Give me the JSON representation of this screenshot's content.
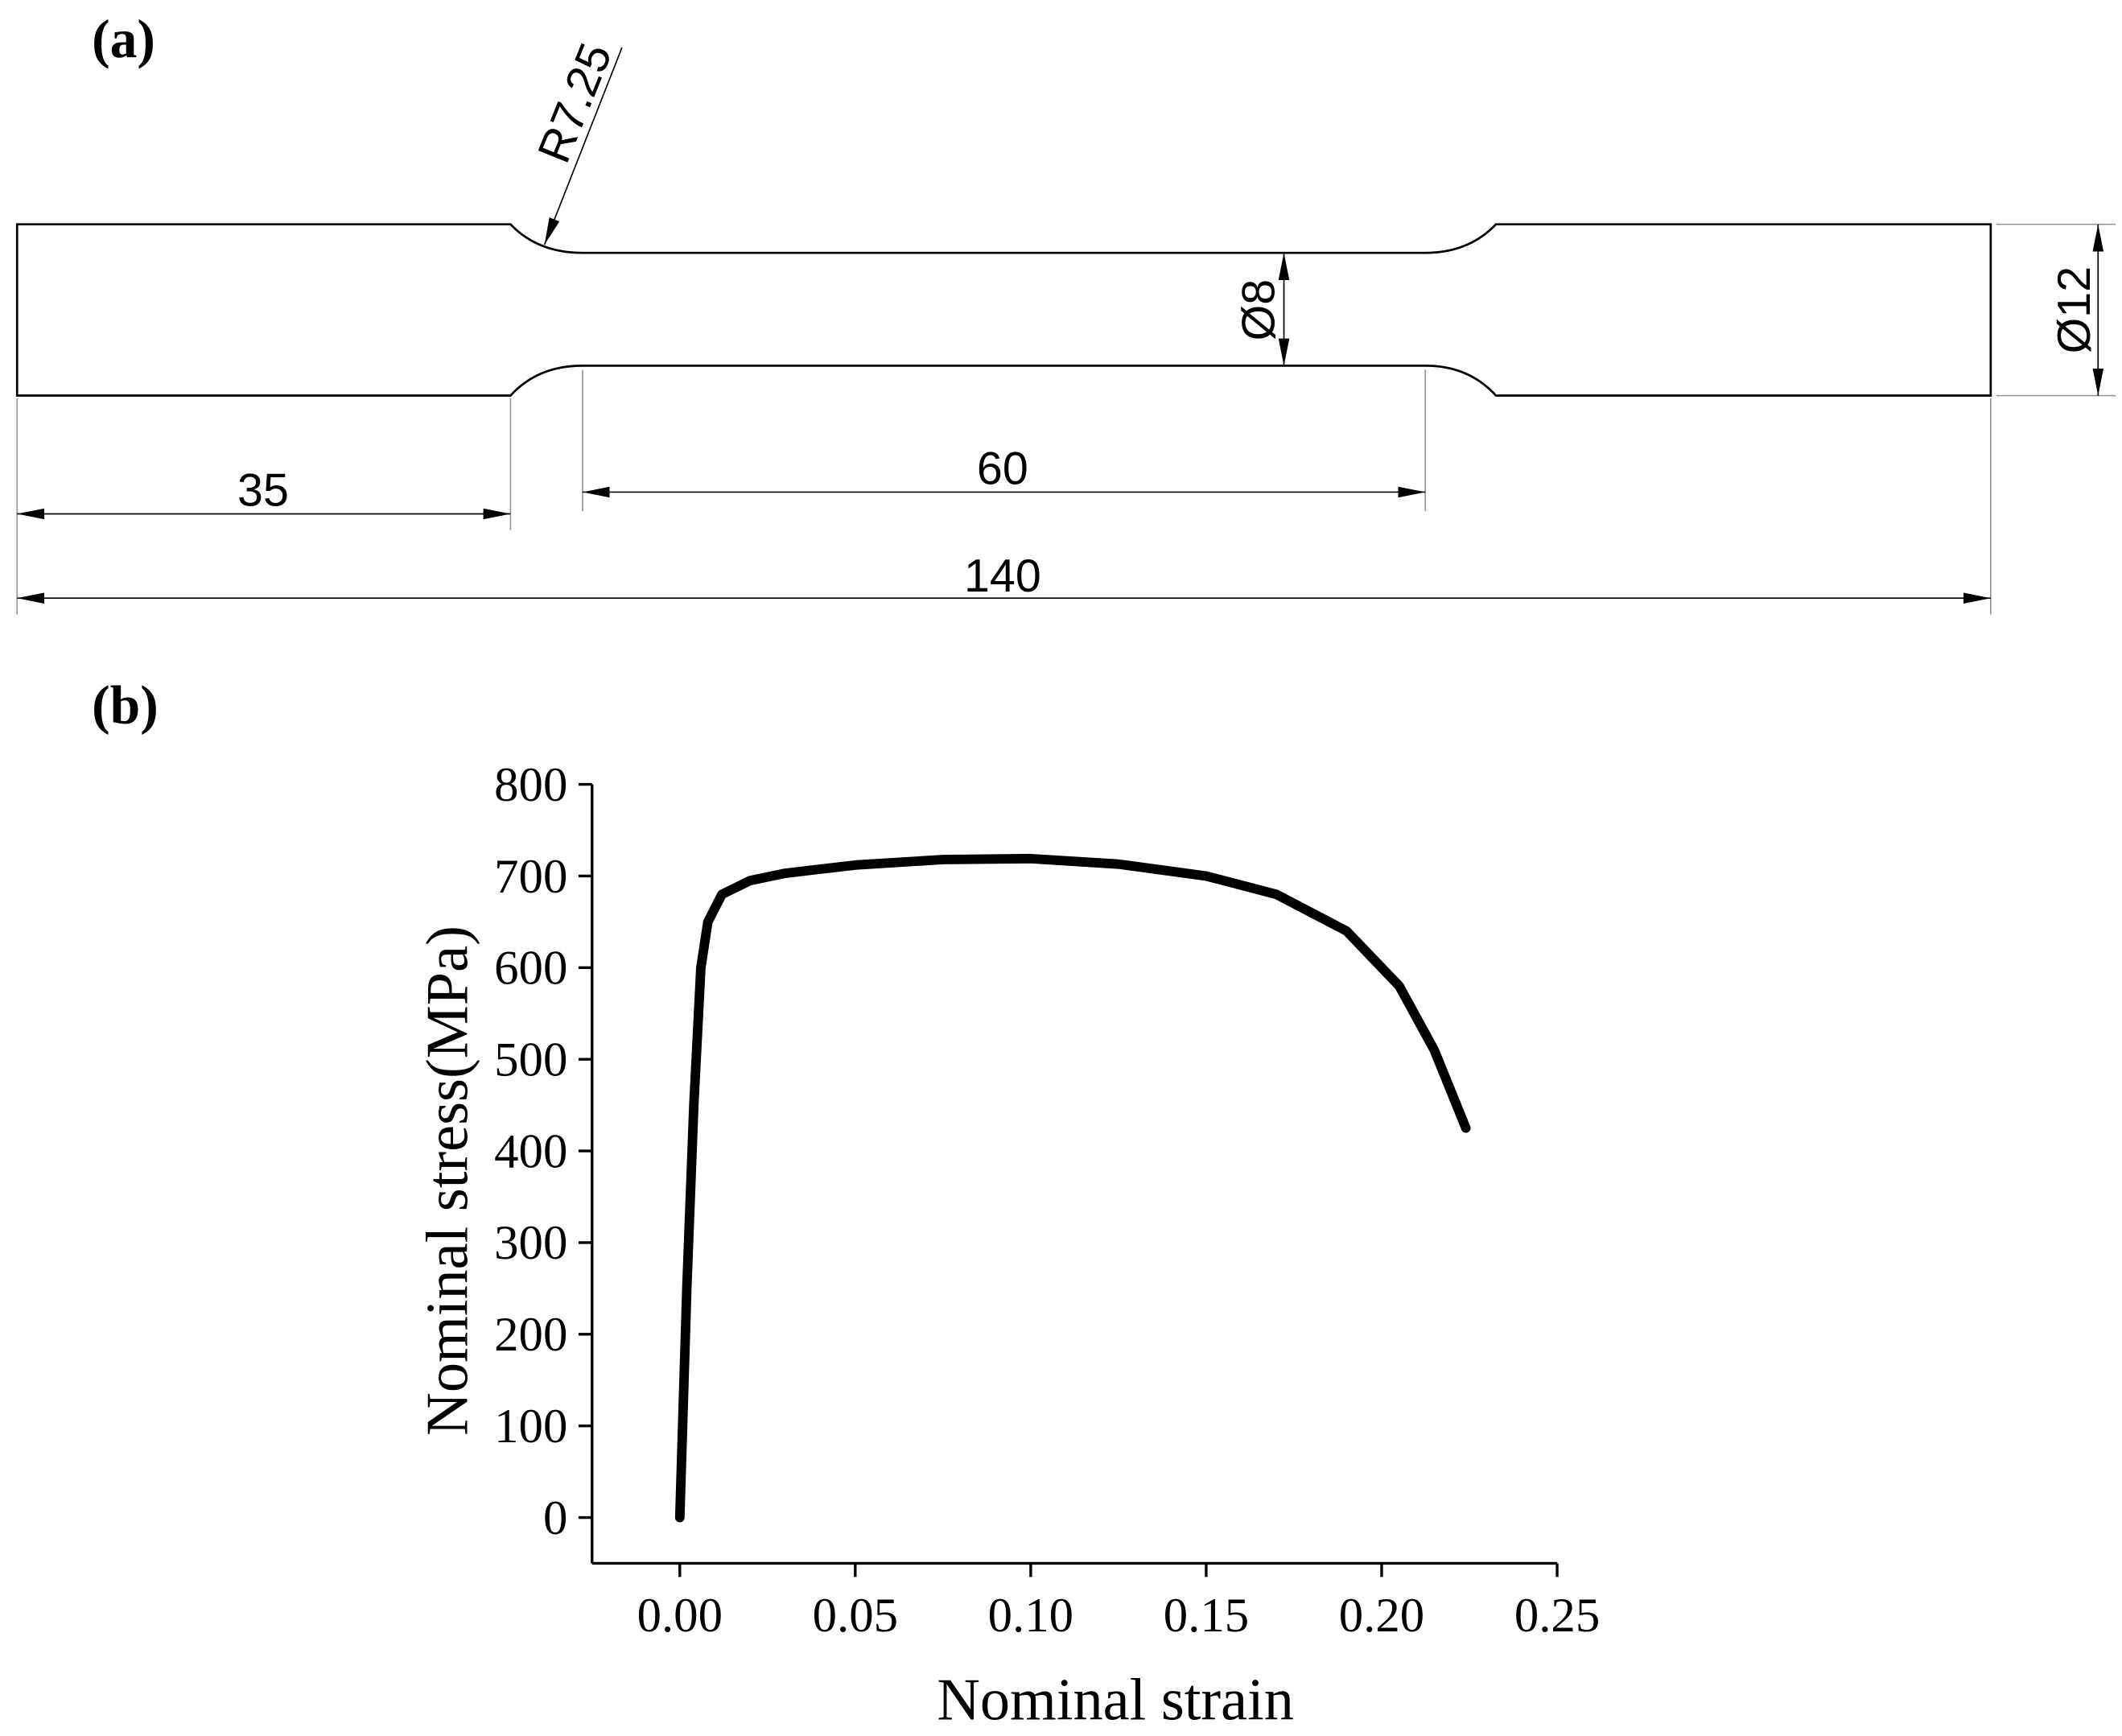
{
  "diagram": {
    "panel_label": "(a)",
    "dimensions": {
      "fillet_radius": "R7.25",
      "gauge_diameter": "Ø8",
      "grip_diameter": "Ø12",
      "grip_length": "35",
      "gauge_length": "60",
      "total_length": "140"
    }
  },
  "chart_data": {
    "type": "line",
    "panel_label": "(b)",
    "x_label": "Nominal strain",
    "y_label": "Nominal stress(MPa)",
    "x": [
      0,
      0.002,
      0.004,
      0.006,
      0.008,
      0.012,
      0.02,
      0.03,
      0.05,
      0.075,
      0.1,
      0.125,
      0.15,
      0.17,
      0.19,
      0.205,
      0.215,
      0.224
    ],
    "values": [
      0,
      250,
      450,
      600,
      650,
      680,
      695,
      703,
      712,
      718,
      719,
      713,
      700,
      680,
      640,
      580,
      510,
      425
    ],
    "color": "#000000",
    "xlim": [
      -0.025,
      0.25
    ],
    "xticks": [
      {
        "value": 0,
        "label": "0.00"
      },
      0.05,
      {
        "value": 0.1,
        "label": "0.10"
      },
      0.15,
      {
        "value": 0.2,
        "label": "0.20"
      },
      0.25
    ],
    "ylim": [
      -50,
      800
    ],
    "yticks": [
      0,
      100,
      200,
      300,
      400,
      500,
      600,
      700,
      800
    ],
    "grid": false
  }
}
